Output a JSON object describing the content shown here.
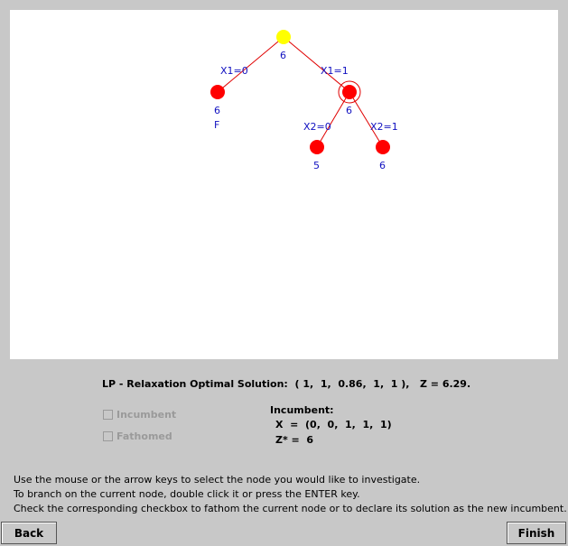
{
  "tree": {
    "nodes": [
      {
        "id": "root",
        "label": "6",
        "sublabel": "",
        "color": "#ffff00",
        "selected": false
      },
      {
        "id": "n0",
        "label": "6",
        "sublabel": "F",
        "color": "#ff0000",
        "selected": false
      },
      {
        "id": "n1",
        "label": "6",
        "sublabel": "",
        "color": "#ff0000",
        "selected": true
      },
      {
        "id": "n10",
        "label": "5",
        "sublabel": "",
        "color": "#ff0000",
        "selected": false
      },
      {
        "id": "n11",
        "label": "6",
        "sublabel": "",
        "color": "#ff0000",
        "selected": false
      }
    ],
    "branches": [
      {
        "from": "root",
        "to": "n0",
        "label": "X1=0"
      },
      {
        "from": "root",
        "to": "n1",
        "label": "X1=1"
      },
      {
        "from": "n1",
        "to": "n10",
        "label": "X2=0"
      },
      {
        "from": "n1",
        "to": "n11",
        "label": "X2=1"
      }
    ]
  },
  "lp_solution": "LP - Relaxation Optimal Solution:  ( 1,  1,  0.86,  1,  1 ),   Z = 6.29.",
  "checkboxes": {
    "incumbent": {
      "label": "Incumbent",
      "checked": false,
      "enabled": false
    },
    "fathomed": {
      "label": "Fathomed",
      "checked": false,
      "enabled": false
    }
  },
  "incumbent": {
    "title": "Incumbent:",
    "x_line": "X  =  (0,  0,  1,  1,  1)",
    "z_line": "Z* =  6"
  },
  "instructions": [
    "Use the mouse or the arrow keys to select the node you would like to investigate.",
    "To branch on the current node, double click it or press the ENTER key.",
    "Check the corresponding checkbox to fathom the current node or to declare its solution as the new incumbent."
  ],
  "buttons": {
    "back": "Back",
    "finish": "Finish"
  }
}
